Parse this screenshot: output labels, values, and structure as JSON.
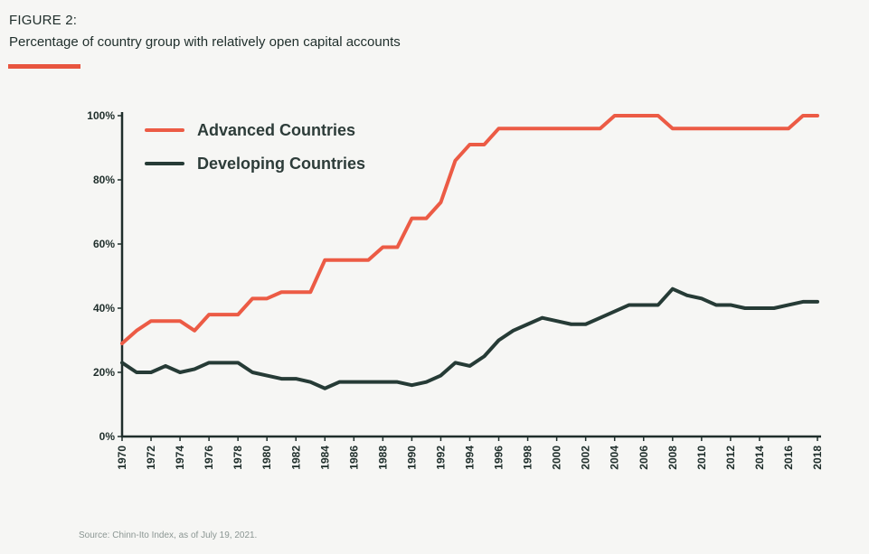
{
  "header": {
    "figure_label": "FIGURE 2:",
    "title": "Percentage of country group with relatively open capital accounts"
  },
  "footer": {
    "source": "Source: Chinn-Ito Index, as of July 19, 2021."
  },
  "colors": {
    "accent": "#e8553f",
    "advanced": "#ec5b45",
    "developing": "#263b36",
    "axis": "#1f2e2b",
    "background": "#f6f6f4"
  },
  "chart_data": {
    "type": "line",
    "x": [
      1970,
      1971,
      1972,
      1973,
      1974,
      1975,
      1976,
      1977,
      1978,
      1979,
      1980,
      1981,
      1982,
      1983,
      1984,
      1985,
      1986,
      1987,
      1988,
      1989,
      1990,
      1991,
      1992,
      1993,
      1994,
      1995,
      1996,
      1997,
      1998,
      1999,
      2000,
      2001,
      2002,
      2003,
      2004,
      2005,
      2006,
      2007,
      2008,
      2009,
      2010,
      2011,
      2012,
      2013,
      2014,
      2015,
      2016,
      2017,
      2018
    ],
    "xticks": [
      "1970",
      "1972",
      "1974",
      "1976",
      "1978",
      "1980",
      "1982",
      "1984",
      "1986",
      "1988",
      "1990",
      "1992",
      "1994",
      "1996",
      "1998",
      "2000",
      "2002",
      "2004",
      "2006",
      "2008",
      "2010",
      "2012",
      "2014",
      "2016",
      "2018"
    ],
    "yticks": [
      "0%",
      "20%",
      "40%",
      "60%",
      "80%",
      "100%"
    ],
    "ylim": [
      0,
      100
    ],
    "xlim": [
      1970,
      2018
    ],
    "legend_position": "top-left",
    "grid": false,
    "series": [
      {
        "name": "Advanced Countries",
        "color": "#ec5b45",
        "values": [
          29,
          33,
          36,
          36,
          36,
          33,
          38,
          38,
          38,
          43,
          43,
          45,
          45,
          45,
          55,
          55,
          55,
          55,
          59,
          59,
          68,
          68,
          73,
          86,
          91,
          91,
          96,
          96,
          96,
          96,
          96,
          96,
          96,
          96,
          100,
          100,
          100,
          100,
          96,
          96,
          96,
          96,
          96,
          96,
          96,
          96,
          96,
          100,
          100
        ]
      },
      {
        "name": "Developing Countries",
        "color": "#263b36",
        "values": [
          23,
          20,
          20,
          22,
          20,
          21,
          23,
          23,
          23,
          20,
          19,
          18,
          18,
          17,
          15,
          17,
          17,
          17,
          17,
          17,
          16,
          17,
          19,
          23,
          22,
          25,
          30,
          33,
          35,
          37,
          36,
          35,
          35,
          37,
          39,
          41,
          41,
          41,
          46,
          44,
          43,
          41,
          41,
          40,
          40,
          40,
          41,
          42,
          42
        ]
      }
    ]
  }
}
